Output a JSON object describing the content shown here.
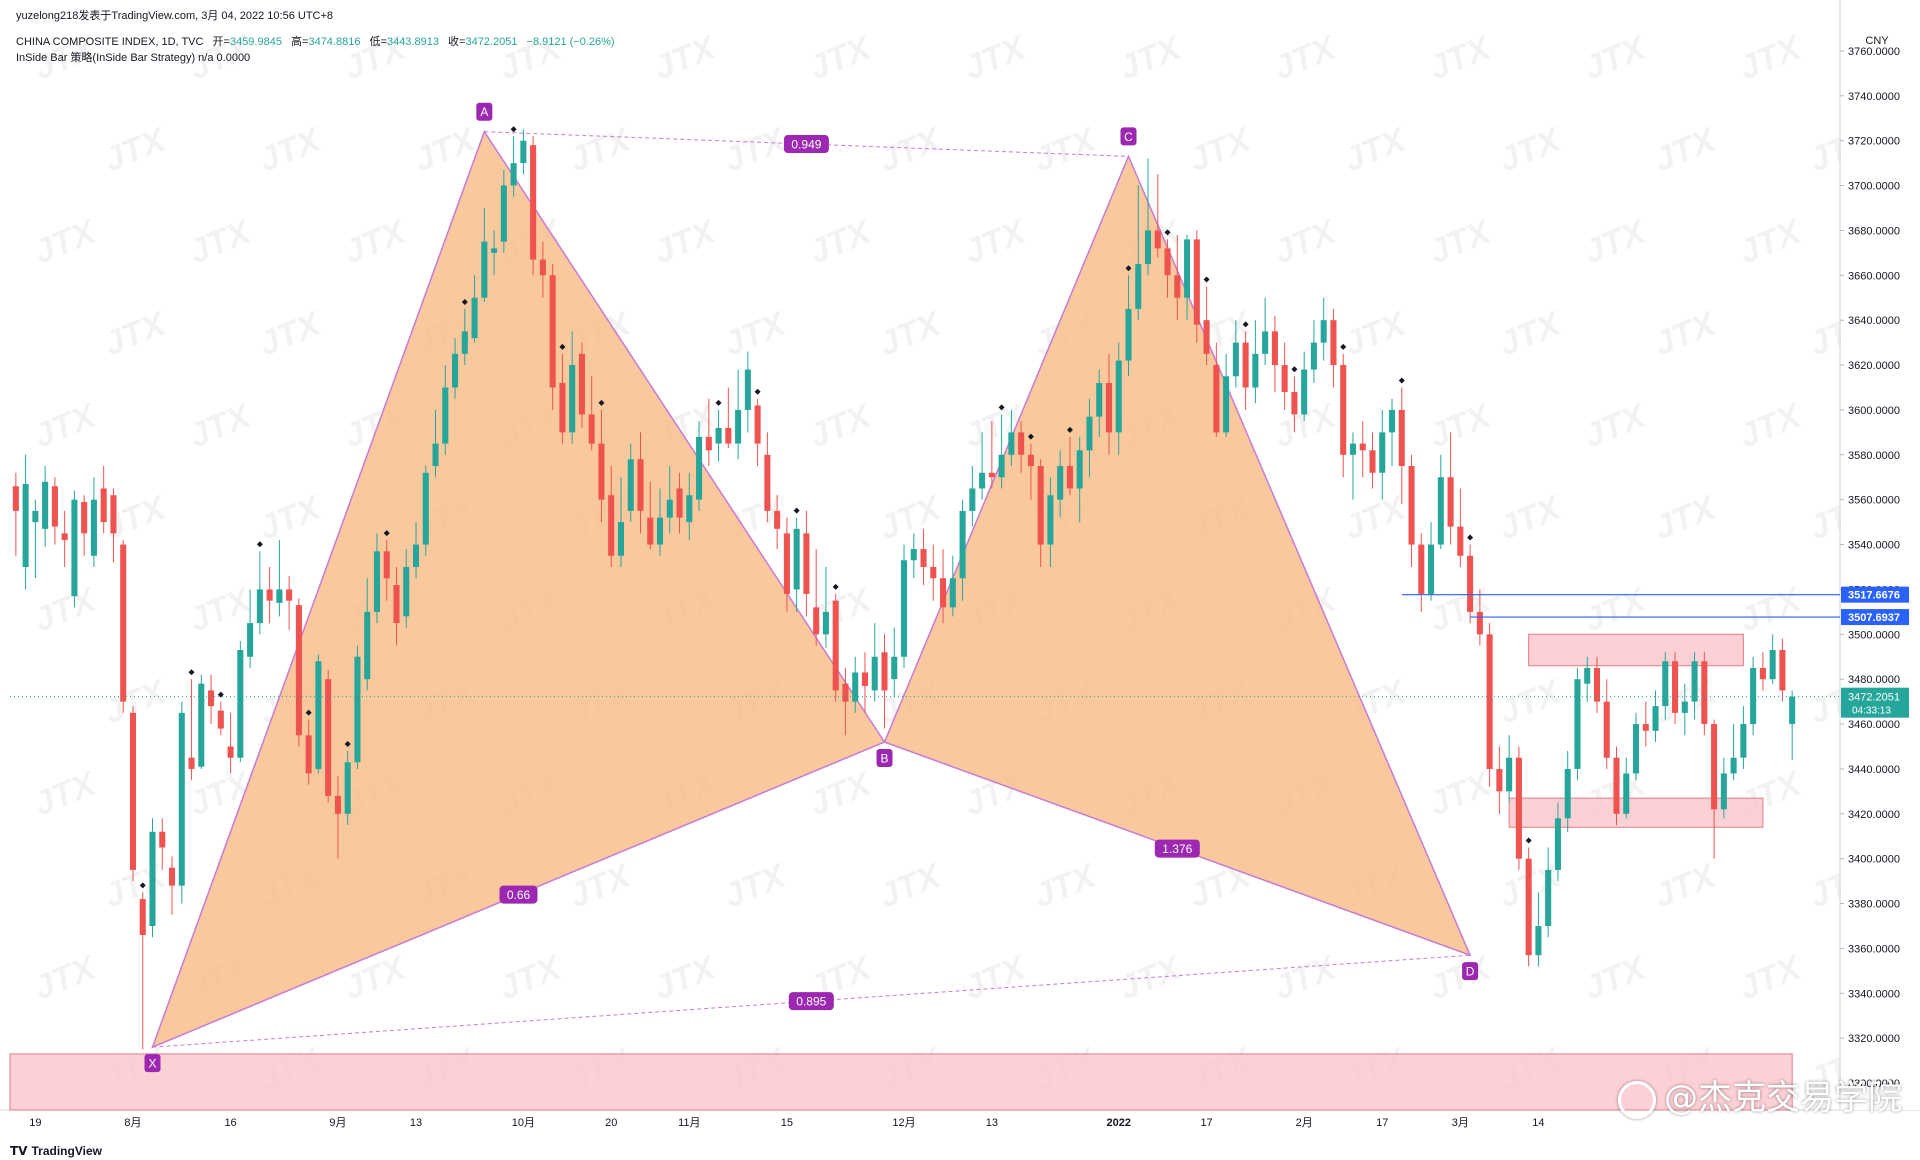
{
  "header": {
    "publisher": "yuzelong218发表于TradingView.com,  3月 04, 2022 10:56 UTC+8",
    "symbol": "CHINA COMPOSITE INDEX, 1D, TVC",
    "open_label": "开=",
    "open_value": "3459.9845",
    "high_label": "高=",
    "high_value": "3474.8816",
    "low_label": "低=",
    "low_value": "3443.8913",
    "close_label": "收=",
    "close_value": "3472.2051",
    "change": "−8.9121 (−0.26%)",
    "indicator": "InSide Bar 策略(InSide Bar Strategy)  n/a  0.0000"
  },
  "footer": {
    "brand": "TradingView",
    "watermark": "@杰克交易学院",
    "tile_watermark": "JTX"
  },
  "colors": {
    "up": "#26a69a",
    "down": "#ef5350",
    "pattern_fill": "#f8c08c",
    "pattern_line": "#c77ad8",
    "label_bg": "#9c27b0",
    "zone_fill": "#fbc9cf",
    "hline": "#2962ff"
  },
  "chart_data": {
    "type": "candlestick",
    "currency": "CNY",
    "y_ticks": [
      3300,
      3320,
      3340,
      3360,
      3380,
      3400,
      3420,
      3440,
      3460,
      3480,
      3500,
      3520,
      3540,
      3560,
      3580,
      3600,
      3620,
      3640,
      3660,
      3680,
      3700,
      3720,
      3740,
      3760
    ],
    "y_tick_labels": [
      "3300.0000",
      "3320.0000",
      "3340.0000",
      "3360.0000",
      "3380.0000",
      "3400.0000",
      "3420.0000",
      "3440.0000",
      "3460.0000",
      "3480.0000",
      "3500.0000",
      "3520.0000",
      "3540.0000",
      "3560.0000",
      "3580.0000",
      "3600.0000",
      "3620.0000",
      "3640.0000",
      "3660.0000",
      "3680.0000",
      "3700.0000",
      "3720.0000",
      "3740.0000",
      "3760.0000"
    ],
    "ylim": [
      3288,
      3772
    ],
    "x_ticks": [
      {
        "i": 2,
        "label": "19"
      },
      {
        "i": 12,
        "label": "8月"
      },
      {
        "i": 22,
        "label": "16"
      },
      {
        "i": 33,
        "label": "9月"
      },
      {
        "i": 41,
        "label": "13"
      },
      {
        "i": 52,
        "label": "10月"
      },
      {
        "i": 61,
        "label": "20"
      },
      {
        "i": 69,
        "label": "11月"
      },
      {
        "i": 79,
        "label": "15"
      },
      {
        "i": 91,
        "label": "12月"
      },
      {
        "i": 100,
        "label": "13"
      },
      {
        "i": 113,
        "label": "2022"
      },
      {
        "i": 122,
        "label": "17"
      },
      {
        "i": 132,
        "label": "2月"
      },
      {
        "i": 140,
        "label": "17"
      },
      {
        "i": 148,
        "label": "3月"
      },
      {
        "i": 156,
        "label": "14"
      }
    ],
    "candles": [
      [
        3566,
        3555,
        3572,
        3535
      ],
      [
        3530,
        3567,
        3580,
        3520
      ],
      [
        3550,
        3555,
        3560,
        3525
      ],
      [
        3547,
        3568,
        3575,
        3539
      ],
      [
        3566,
        3548,
        3570,
        3540
      ],
      [
        3545,
        3542,
        3555,
        3530
      ],
      [
        3517,
        3560,
        3564,
        3512
      ],
      [
        3559,
        3545,
        3562,
        3535
      ],
      [
        3535,
        3560,
        3570,
        3530
      ],
      [
        3565,
        3550,
        3575,
        3545
      ],
      [
        3562,
        3545,
        3565,
        3532
      ],
      [
        3540,
        3470,
        3542,
        3465
      ],
      [
        3465,
        3395,
        3468,
        3390
      ],
      [
        3382,
        3366,
        3385,
        3315
      ],
      [
        3370,
        3412,
        3418,
        3365
      ],
      [
        3412,
        3405,
        3418,
        3395
      ],
      [
        3396,
        3388,
        3401,
        3375
      ],
      [
        3388,
        3465,
        3470,
        3380
      ],
      [
        3445,
        3440,
        3480,
        3435
      ],
      [
        3441,
        3478,
        3482,
        3440
      ],
      [
        3475,
        3468,
        3482,
        3460
      ],
      [
        3466,
        3458,
        3470,
        3455
      ],
      [
        3450,
        3445,
        3465,
        3438
      ],
      [
        3445,
        3493,
        3497,
        3443
      ],
      [
        3490,
        3505,
        3520,
        3485
      ],
      [
        3505,
        3520,
        3537,
        3500
      ],
      [
        3520,
        3515,
        3530,
        3505
      ],
      [
        3514,
        3520,
        3542,
        3508
      ],
      [
        3520,
        3515,
        3526,
        3502
      ],
      [
        3513,
        3455,
        3516,
        3450
      ],
      [
        3455,
        3438,
        3462,
        3433
      ],
      [
        3440,
        3488,
        3491,
        3438
      ],
      [
        3480,
        3428,
        3484,
        3425
      ],
      [
        3428,
        3420,
        3437,
        3400
      ],
      [
        3420,
        3443,
        3448,
        3415
      ],
      [
        3443,
        3490,
        3495,
        3440
      ],
      [
        3480,
        3510,
        3525,
        3475
      ],
      [
        3510,
        3537,
        3545,
        3505
      ],
      [
        3537,
        3525,
        3542,
        3515
      ],
      [
        3522,
        3505,
        3530,
        3495
      ],
      [
        3508,
        3530,
        3538,
        3503
      ],
      [
        3530,
        3540,
        3550,
        3525
      ],
      [
        3540,
        3572,
        3575,
        3535
      ],
      [
        3575,
        3585,
        3600,
        3570
      ],
      [
        3585,
        3610,
        3620,
        3580
      ],
      [
        3610,
        3625,
        3632,
        3605
      ],
      [
        3625,
        3635,
        3645,
        3620
      ],
      [
        3632,
        3650,
        3660,
        3630
      ],
      [
        3650,
        3675,
        3690,
        3648
      ],
      [
        3670,
        3672,
        3680,
        3660
      ],
      [
        3675,
        3700,
        3707,
        3670
      ],
      [
        3700,
        3710,
        3722,
        3695
      ],
      [
        3710,
        3720,
        3725,
        3705
      ],
      [
        3718,
        3667,
        3722,
        3660
      ],
      [
        3667,
        3660,
        3675,
        3650
      ],
      [
        3660,
        3610,
        3665,
        3600
      ],
      [
        3612,
        3590,
        3625,
        3585
      ],
      [
        3590,
        3620,
        3635,
        3585
      ],
      [
        3625,
        3598,
        3630,
        3592
      ],
      [
        3598,
        3585,
        3615,
        3582
      ],
      [
        3585,
        3560,
        3600,
        3550
      ],
      [
        3562,
        3535,
        3575,
        3530
      ],
      [
        3535,
        3550,
        3570,
        3530
      ],
      [
        3555,
        3578,
        3585,
        3550
      ],
      [
        3578,
        3555,
        3590,
        3545
      ],
      [
        3552,
        3540,
        3568,
        3538
      ],
      [
        3540,
        3552,
        3565,
        3535
      ],
      [
        3552,
        3560,
        3575,
        3545
      ],
      [
        3565,
        3552,
        3572,
        3545
      ],
      [
        3550,
        3562,
        3572,
        3542
      ],
      [
        3560,
        3588,
        3595,
        3555
      ],
      [
        3588,
        3582,
        3605,
        3575
      ],
      [
        3585,
        3592,
        3600,
        3577
      ],
      [
        3592,
        3585,
        3610,
        3583
      ],
      [
        3585,
        3600,
        3618,
        3578
      ],
      [
        3600,
        3618,
        3626,
        3590
      ],
      [
        3602,
        3585,
        3605,
        3575
      ],
      [
        3580,
        3555,
        3590,
        3550
      ],
      [
        3555,
        3547,
        3562,
        3538
      ],
      [
        3545,
        3518,
        3552,
        3510
      ],
      [
        3520,
        3547,
        3552,
        3510
      ],
      [
        3545,
        3518,
        3555,
        3508
      ],
      [
        3512,
        3500,
        3538,
        3495
      ],
      [
        3500,
        3510,
        3530,
        3494
      ],
      [
        3515,
        3475,
        3518,
        3470
      ],
      [
        3478,
        3470,
        3485,
        3455
      ],
      [
        3470,
        3483,
        3490,
        3465
      ],
      [
        3483,
        3477,
        3492,
        3465
      ],
      [
        3475,
        3490,
        3505,
        3470
      ],
      [
        3492,
        3475,
        3500,
        3458
      ],
      [
        3480,
        3490,
        3503,
        3472
      ],
      [
        3490,
        3533,
        3540,
        3485
      ],
      [
        3533,
        3538,
        3545,
        3525
      ],
      [
        3538,
        3530,
        3547,
        3522
      ],
      [
        3530,
        3525,
        3540,
        3515
      ],
      [
        3525,
        3512,
        3538,
        3505
      ],
      [
        3512,
        3525,
        3535,
        3508
      ],
      [
        3525,
        3555,
        3560,
        3515
      ],
      [
        3555,
        3565,
        3575,
        3548
      ],
      [
        3565,
        3572,
        3590,
        3560
      ],
      [
        3572,
        3570,
        3595,
        3565
      ],
      [
        3570,
        3580,
        3598,
        3565
      ],
      [
        3580,
        3590,
        3600,
        3575
      ],
      [
        3590,
        3580,
        3595,
        3572
      ],
      [
        3580,
        3575,
        3585,
        3560
      ],
      [
        3575,
        3540,
        3578,
        3530
      ],
      [
        3540,
        3562,
        3570,
        3530
      ],
      [
        3560,
        3575,
        3582,
        3552
      ],
      [
        3575,
        3565,
        3588,
        3562
      ],
      [
        3565,
        3582,
        3588,
        3550
      ],
      [
        3582,
        3597,
        3605,
        3570
      ],
      [
        3597,
        3612,
        3618,
        3588
      ],
      [
        3612,
        3590,
        3625,
        3580
      ],
      [
        3590,
        3622,
        3630,
        3580
      ],
      [
        3622,
        3645,
        3660,
        3615
      ],
      [
        3645,
        3665,
        3700,
        3640
      ],
      [
        3665,
        3680,
        3712,
        3660
      ],
      [
        3680,
        3672,
        3705,
        3668
      ],
      [
        3672,
        3660,
        3676,
        3650
      ],
      [
        3660,
        3650,
        3678,
        3640
      ],
      [
        3650,
        3676,
        3678,
        3640
      ],
      [
        3676,
        3638,
        3680,
        3630
      ],
      [
        3640,
        3625,
        3655,
        3620
      ],
      [
        3620,
        3590,
        3630,
        3588
      ],
      [
        3590,
        3615,
        3625,
        3588
      ],
      [
        3615,
        3630,
        3640,
        3610
      ],
      [
        3630,
        3610,
        3635,
        3600
      ],
      [
        3610,
        3625,
        3640,
        3603
      ],
      [
        3625,
        3635,
        3650,
        3620
      ],
      [
        3635,
        3620,
        3642,
        3608
      ],
      [
        3620,
        3608,
        3630,
        3600
      ],
      [
        3608,
        3598,
        3615,
        3590
      ],
      [
        3598,
        3618,
        3626,
        3595
      ],
      [
        3618,
        3630,
        3640,
        3612
      ],
      [
        3630,
        3640,
        3650,
        3622
      ],
      [
        3640,
        3620,
        3645,
        3610
      ],
      [
        3620,
        3580,
        3625,
        3570
      ],
      [
        3580,
        3585,
        3590,
        3560
      ],
      [
        3585,
        3582,
        3595,
        3570
      ],
      [
        3582,
        3572,
        3590,
        3565
      ],
      [
        3572,
        3590,
        3600,
        3560
      ],
      [
        3590,
        3600,
        3605,
        3575
      ],
      [
        3600,
        3575,
        3610,
        3558
      ],
      [
        3575,
        3540,
        3580,
        3530
      ],
      [
        3540,
        3518,
        3545,
        3510
      ],
      [
        3518,
        3540,
        3550,
        3515
      ],
      [
        3540,
        3570,
        3580,
        3538
      ],
      [
        3570,
        3548,
        3590,
        3540
      ],
      [
        3548,
        3535,
        3565,
        3530
      ],
      [
        3535,
        3510,
        3540,
        3505
      ],
      [
        3510,
        3500,
        3520,
        3495
      ],
      [
        3500,
        3440,
        3505,
        3432
      ],
      [
        3440,
        3430,
        3450,
        3420
      ],
      [
        3430,
        3445,
        3455,
        3425
      ],
      [
        3445,
        3400,
        3450,
        3395
      ],
      [
        3400,
        3357,
        3405,
        3352
      ],
      [
        3357,
        3370,
        3385,
        3352
      ],
      [
        3370,
        3395,
        3405,
        3365
      ],
      [
        3395,
        3418,
        3425,
        3390
      ],
      [
        3418,
        3440,
        3448,
        3412
      ],
      [
        3440,
        3480,
        3485,
        3435
      ],
      [
        3478,
        3485,
        3490,
        3470
      ],
      [
        3485,
        3470,
        3490,
        3465
      ],
      [
        3470,
        3445,
        3480,
        3440
      ],
      [
        3445,
        3420,
        3450,
        3415
      ],
      [
        3420,
        3438,
        3445,
        3418
      ],
      [
        3438,
        3460,
        3465,
        3435
      ],
      [
        3460,
        3457,
        3470,
        3450
      ],
      [
        3457,
        3468,
        3475,
        3452
      ],
      [
        3468,
        3488,
        3492,
        3462
      ],
      [
        3488,
        3465,
        3492,
        3460
      ],
      [
        3465,
        3470,
        3478,
        3455
      ],
      [
        3470,
        3488,
        3492,
        3462
      ],
      [
        3488,
        3460,
        3492,
        3455
      ],
      [
        3460,
        3422,
        3462,
        3400
      ],
      [
        3422,
        3438,
        3445,
        3418
      ],
      [
        3438,
        3445,
        3460,
        3435
      ],
      [
        3445,
        3460,
        3468,
        3440
      ],
      [
        3460,
        3485,
        3490,
        3455
      ],
      [
        3485,
        3480,
        3492,
        3475
      ],
      [
        3480,
        3493,
        3500,
        3478
      ],
      [
        3493,
        3475,
        3498,
        3470
      ],
      [
        3459.9845,
        3472.2051,
        3474.8816,
        3443.8913
      ]
    ],
    "inside_bar_signals": [
      13,
      18,
      21,
      25,
      30,
      34,
      38,
      46,
      51,
      56,
      60,
      72,
      76,
      80,
      84,
      101,
      104,
      108,
      114,
      118,
      122,
      126,
      131,
      136,
      142,
      149,
      155
    ],
    "harmonic_pattern": {
      "points": [
        {
          "label": "X",
          "i": 14,
          "price": 3316
        },
        {
          "label": "A",
          "i": 48,
          "price": 3724
        },
        {
          "label": "B",
          "i": 89,
          "price": 3452
        },
        {
          "label": "C",
          "i": 114,
          "price": 3713
        },
        {
          "label": "D",
          "i": 149,
          "price": 3357
        }
      ],
      "ratios": [
        {
          "label": "0.66",
          "from": "X",
          "to": "B"
        },
        {
          "label": "0.949",
          "from": "A",
          "to": "C"
        },
        {
          "label": "1.376",
          "from": "B",
          "to": "D"
        },
        {
          "label": "0.895",
          "from": "X",
          "to": "D"
        }
      ]
    },
    "zones": [
      {
        "i0": 0,
        "i1": 182,
        "top": 3313,
        "bottom": 3288
      },
      {
        "i0": 155,
        "i1": 177,
        "top": 3500,
        "bottom": 3486
      },
      {
        "i0": 153,
        "i1": 179,
        "top": 3427,
        "bottom": 3414
      }
    ],
    "h_lines": [
      {
        "i0": 142,
        "price": 3517.6676,
        "label": "3517.6676"
      },
      {
        "i0": 149,
        "price": 3507.6937,
        "label": "3507.6937"
      }
    ],
    "last_price": {
      "price": 3472.2051,
      "label": "3472.2051",
      "countdown": "04:33:13"
    }
  }
}
